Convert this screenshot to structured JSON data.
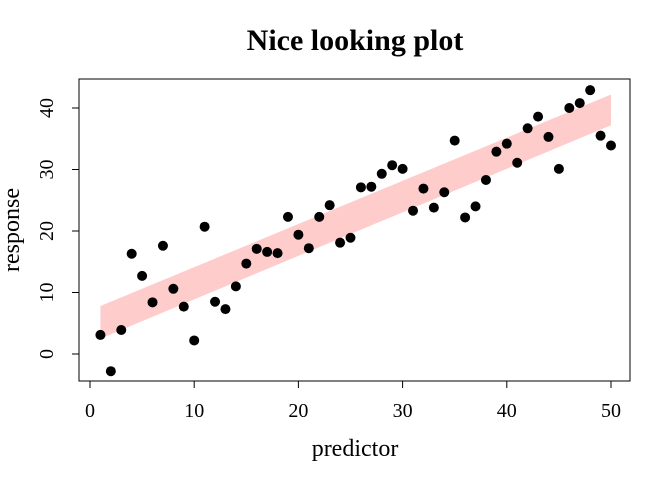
{
  "chart_data": {
    "type": "scatter",
    "title": "Nice looking plot",
    "xlabel": "predictor",
    "ylabel": "response",
    "xlim": [
      0,
      51
    ],
    "ylim": [
      -4,
      45
    ],
    "xticks": [
      0,
      10,
      20,
      30,
      40,
      50
    ],
    "yticks": [
      0,
      10,
      20,
      30,
      40
    ],
    "grid": false,
    "colors": {
      "points": "#000000",
      "band": "#ffcccc"
    },
    "band": {
      "x": [
        1,
        50
      ],
      "lower": [
        2.5,
        37.2
      ],
      "upper": [
        7.8,
        42.2
      ]
    },
    "series": [
      {
        "x": [
          1,
          2,
          3,
          4,
          5,
          6,
          7,
          8,
          9,
          10,
          11,
          12,
          13,
          14,
          15,
          16,
          17,
          18,
          19,
          20,
          21,
          22,
          23,
          24,
          25,
          26,
          27,
          28,
          29,
          30,
          31,
          32,
          33,
          34,
          35,
          36,
          37,
          38,
          39,
          40,
          41,
          42,
          43,
          44,
          45,
          46,
          47,
          48,
          49,
          50
        ],
        "y": [
          3.1,
          -2.8,
          3.9,
          16.3,
          12.7,
          8.4,
          17.6,
          10.6,
          7.7,
          2.2,
          20.7,
          8.5,
          7.3,
          11.0,
          14.7,
          17.1,
          16.6,
          16.4,
          22.3,
          19.4,
          17.2,
          22.3,
          24.2,
          18.1,
          18.9,
          27.1,
          27.2,
          29.3,
          30.7,
          30.1,
          23.3,
          26.9,
          23.8,
          26.3,
          34.7,
          22.2,
          24.0,
          28.3,
          32.9,
          34.2,
          31.1,
          36.7,
          38.6,
          35.3,
          30.1,
          40.0,
          40.8,
          42.9,
          35.5,
          33.9
        ]
      }
    ]
  }
}
